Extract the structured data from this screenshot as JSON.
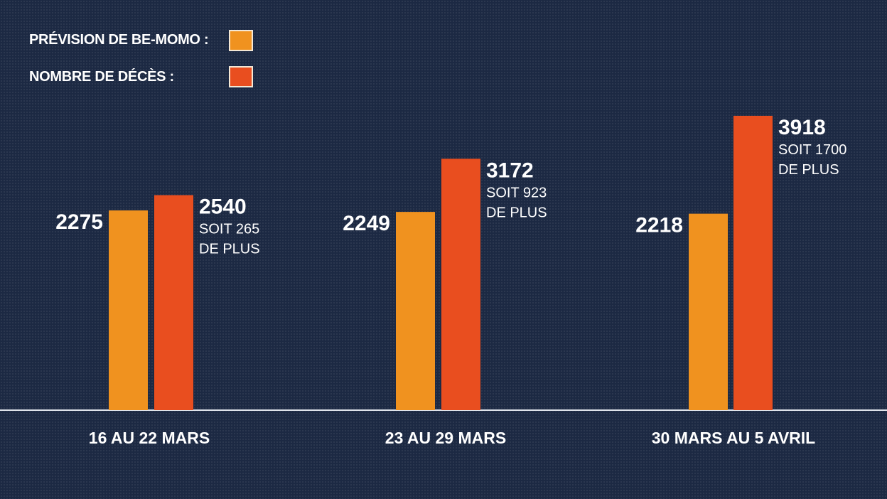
{
  "chart_data": {
    "type": "bar",
    "legend_position": "top-left",
    "grid": false,
    "categories": [
      "16 AU 22 MARS",
      "23 AU 29 MARS",
      "30 MARS AU 5 AVRIL"
    ],
    "series": [
      {
        "name": "PRÉVISION DE BE-MOMO :",
        "color": "#f0921f",
        "values": [
          2275,
          2249,
          2218
        ]
      },
      {
        "name": "NOMBRE DE DÉCÈS :",
        "color": "#e94e1f",
        "values": [
          2540,
          3172,
          3918
        ]
      }
    ],
    "annotations": [
      {
        "line1": "SOIT 265",
        "line2": "DE PLUS"
      },
      {
        "line1": "SOIT 923",
        "line2": "DE PLUS"
      },
      {
        "line1": "SOIT 1700",
        "line2": "DE PLUS"
      }
    ]
  },
  "colors": {
    "background": "#1c2943",
    "axis": "#dfe3ea"
  }
}
